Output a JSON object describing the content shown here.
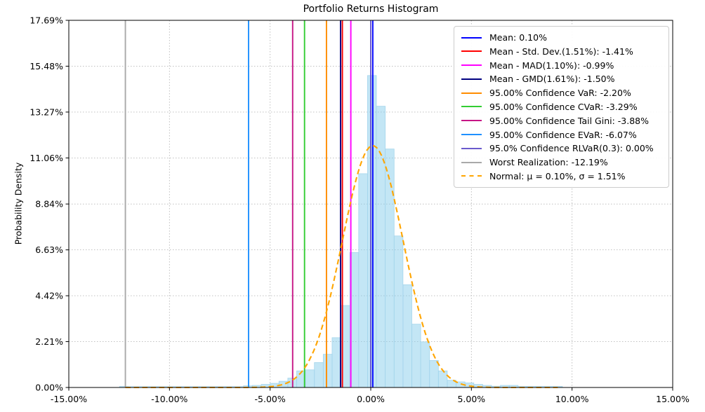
{
  "title": "Portfolio Returns Histogram",
  "y_axis_label": "Probability Density",
  "chart_data": {
    "type": "histogram",
    "title": "Portfolio Returns Histogram",
    "xlabel": "",
    "ylabel": "Probability Density",
    "grid": "dotted",
    "legend_position": "upper right",
    "xlim": [
      -15,
      15
    ],
    "ylim": [
      0,
      17.69
    ],
    "x_tick_values": [
      -15,
      -10,
      -5,
      0,
      5,
      10,
      15
    ],
    "x_tick_labels": [
      "-15.00%",
      "-10.00%",
      "-5.00%",
      "0.00%",
      "5.00%",
      "10.00%",
      "15.00%"
    ],
    "y_tick_values": [
      0,
      2.21,
      4.42,
      6.63,
      8.84,
      11.06,
      13.27,
      15.48,
      17.69
    ],
    "y_tick_labels": [
      "0.00%",
      "2.21%",
      "4.42%",
      "6.63%",
      "8.84%",
      "11.06%",
      "13.27%",
      "15.48%",
      "17.69%"
    ],
    "histogram": {
      "fill_color": "#87CEEB",
      "fill_alpha": 0.5,
      "edge_color": "#a5d5ec",
      "bin_width_pct": 0.44,
      "centers": [
        -12.26,
        -11.82,
        -11.38,
        -10.94,
        -10.5,
        -10.06,
        -9.62,
        -9.18,
        -8.74,
        -8.3,
        -7.86,
        -7.42,
        -6.98,
        -6.54,
        -6.1,
        -5.66,
        -5.22,
        -4.78,
        -4.34,
        -3.9,
        -3.46,
        -3.02,
        -2.58,
        -2.14,
        -1.7,
        -1.26,
        -0.82,
        -0.38,
        0.06,
        0.5,
        0.94,
        1.38,
        1.82,
        2.26,
        2.7,
        3.14,
        3.58,
        4.02,
        4.46,
        4.9,
        5.34,
        5.78,
        6.22,
        6.66,
        7.1,
        7.54,
        7.98,
        8.42,
        8.86,
        9.3
      ],
      "densities": [
        0.05,
        0.04,
        0.04,
        0.04,
        0.04,
        0.04,
        0.04,
        0.04,
        0.04,
        0.04,
        0.04,
        0.04,
        0.04,
        0.04,
        0.08,
        0.1,
        0.15,
        0.2,
        0.3,
        0.45,
        0.8,
        0.85,
        1.2,
        1.6,
        2.4,
        3.95,
        6.5,
        10.3,
        15.03,
        13.55,
        11.49,
        7.3,
        4.95,
        3.05,
        2.2,
        1.3,
        0.8,
        0.35,
        0.27,
        0.22,
        0.15,
        0.1,
        0.06,
        0.1,
        0.1,
        0.05,
        0.05,
        0.05,
        0.05,
        0.05
      ]
    },
    "vlines": [
      {
        "label": "Mean: 0.10%",
        "value_pct": 0.1,
        "color": "#0000FF"
      },
      {
        "label": "Mean - Std. Dev.(1.51%): -1.41%",
        "value_pct": -1.41,
        "color": "#FF0000"
      },
      {
        "label": "Mean - MAD(1.10%): -0.99%",
        "value_pct": -0.99,
        "color": "#FF00FF"
      },
      {
        "label": "Mean - GMD(1.61%): -1.50%",
        "value_pct": -1.5,
        "color": "#000080"
      },
      {
        "label": "95.00% Confidence VaR: -2.20%",
        "value_pct": -2.2,
        "color": "#FF8C00"
      },
      {
        "label": "95.00% Confidence CVaR: -3.29%",
        "value_pct": -3.29,
        "color": "#32CD32"
      },
      {
        "label": "95.00% Confidence Tail Gini: -3.88%",
        "value_pct": -3.88,
        "color": "#C71585"
      },
      {
        "label": "95.00% Confidence EVaR: -6.07%",
        "value_pct": -6.07,
        "color": "#1E90FF"
      },
      {
        "label": "95.0% Confidence RLVaR(0.3): 0.00%",
        "value_pct": 0.0,
        "color": "#6A5ACD"
      },
      {
        "label": "Worst Realization: -12.19%",
        "value_pct": -12.19,
        "color": "#A9A9A9"
      }
    ],
    "normal_curve": {
      "label": "Normal: μ = 0.10%, σ = 1.51%",
      "mu_pct": 0.1,
      "sigma_pct": 1.51,
      "peak_density_pct": 11.65,
      "color": "#FFA500",
      "style": "dashed",
      "x_range": [
        -12.19,
        9.4
      ]
    }
  }
}
